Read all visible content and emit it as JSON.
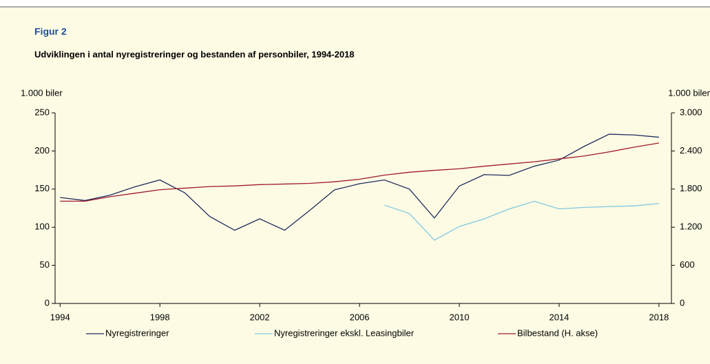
{
  "chart_data": {
    "type": "line",
    "title": "Figur 2",
    "subtitle": "Udviklingen i antal nyregistreringer og bestanden af personbiler, 1994-2018",
    "y_label": "1.000 biler",
    "y2_label": "1.000 biler",
    "x": [
      1994,
      1995,
      1996,
      1997,
      1998,
      1999,
      2000,
      2001,
      2002,
      2003,
      2004,
      2005,
      2006,
      2007,
      2008,
      2009,
      2010,
      2011,
      2012,
      2013,
      2014,
      2015,
      2016,
      2017,
      2018
    ],
    "xlim": [
      1993.8,
      2018.5
    ],
    "xticks": [
      1994,
      1998,
      2002,
      2006,
      2010,
      2014,
      2018
    ],
    "ylim": [
      0,
      250
    ],
    "yticks": [
      0,
      50,
      100,
      150,
      200,
      250
    ],
    "y2lim": [
      0,
      3000
    ],
    "y2ticks": [
      0,
      600,
      {
        "value": 1200,
        "label": "1.200"
      },
      {
        "value": 1800,
        "label": "1.800"
      },
      {
        "value": 2400,
        "label": "2.400"
      },
      {
        "value": 3000,
        "label": "3.000"
      }
    ],
    "legend": "bottom",
    "series": [
      {
        "name": "Nyregistreringer",
        "color": "#1f2a5c",
        "values": [
          139,
          135,
          142,
          153,
          162,
          145,
          114,
          96,
          111,
          96,
          122,
          149,
          157,
          162,
          150,
          112,
          154,
          169,
          168,
          180,
          188,
          206,
          222,
          221,
          218
        ]
      },
      {
        "name": "Nyregistreringer ekskl. Leasingbiler",
        "color": "#7ec8e3",
        "values": [
          null,
          null,
          null,
          null,
          null,
          null,
          null,
          null,
          null,
          null,
          null,
          null,
          null,
          129,
          118,
          83,
          101,
          111,
          124,
          134,
          124,
          126,
          127,
          128,
          131
        ]
      },
      {
        "name": "Bilbestand (H. akse)",
        "color": "#a0182e",
        "axis": "y2",
        "values": [
          1610,
          1610,
          1680,
          1735,
          1790,
          1815,
          1840,
          1850,
          1870,
          1880,
          1890,
          1915,
          1955,
          2020,
          2065,
          2095,
          2120,
          2160,
          2195,
          2230,
          2275,
          2320,
          2385,
          2460,
          2525
        ]
      }
    ]
  }
}
